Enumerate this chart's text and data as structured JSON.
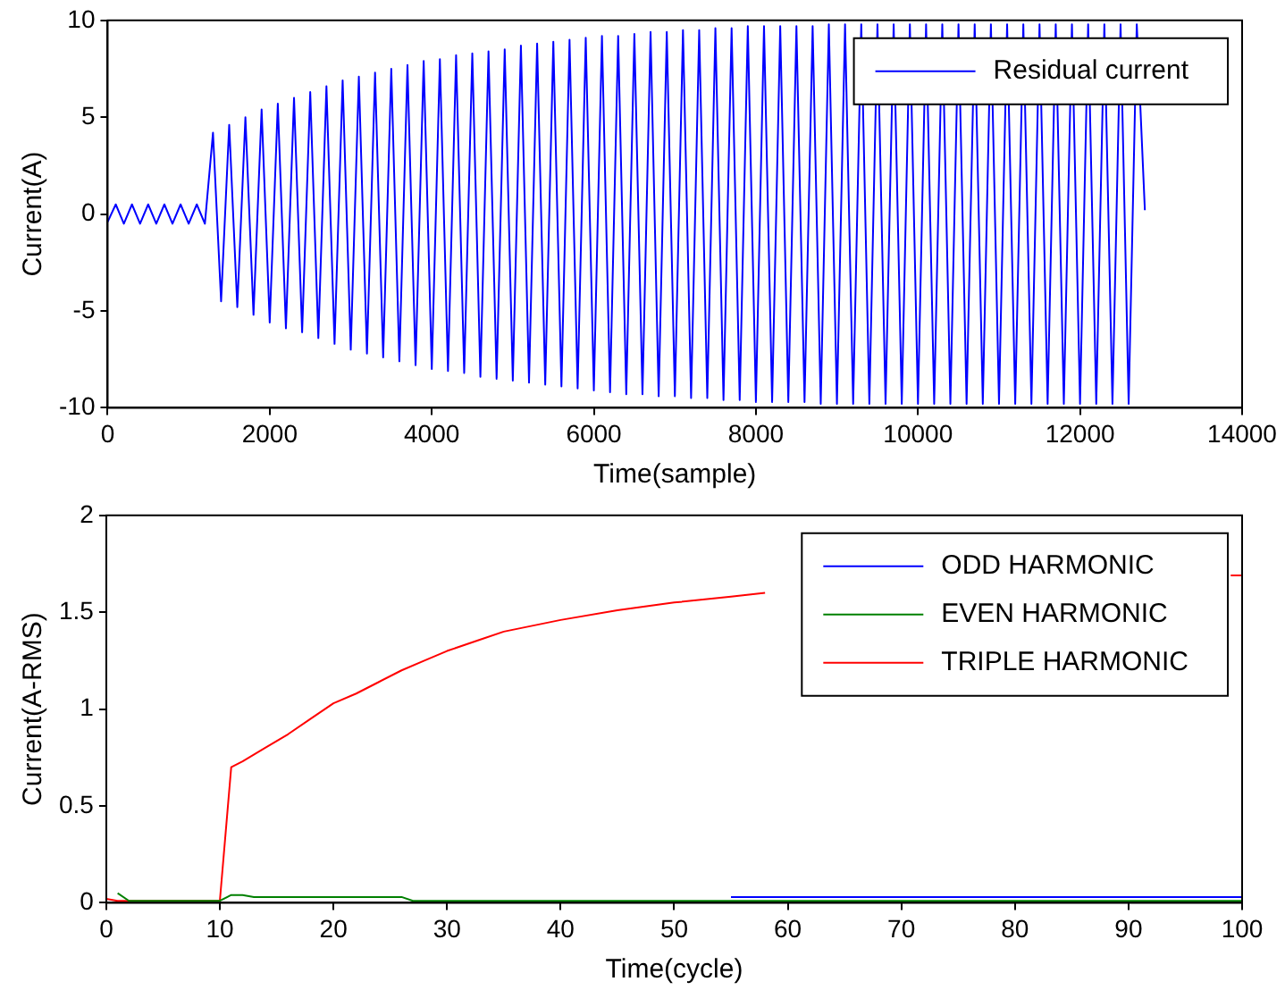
{
  "chart_data": [
    {
      "type": "line",
      "xlabel": "Time(sample)",
      "ylabel": "Current(A)",
      "legend": "top right",
      "xlim": [
        0,
        14000
      ],
      "xticks": [
        0,
        2000,
        4000,
        6000,
        8000,
        10000,
        12000,
        14000
      ],
      "ylim": [
        -10,
        10
      ],
      "yticks": [
        -10,
        -5,
        0,
        5,
        10
      ],
      "series": [
        {
          "name": "Residual current",
          "color": "#0000ff",
          "x": [
            0,
            100,
            200,
            300,
            400,
            500,
            600,
            700,
            800,
            900,
            1000,
            1100,
            1200,
            1300,
            1400,
            1500,
            1600,
            1700,
            1800,
            1900,
            2000,
            2100,
            2200,
            2300,
            2400,
            2500,
            2600,
            2700,
            2800,
            2900,
            3000,
            3100,
            3200,
            3300,
            3400,
            3500,
            3600,
            3700,
            3800,
            3900,
            4000,
            4100,
            4200,
            4300,
            4400,
            4500,
            4600,
            4700,
            4800,
            4900,
            5000,
            5100,
            5200,
            5300,
            5400,
            5500,
            5600,
            5700,
            5800,
            5900,
            6000,
            6100,
            6200,
            6300,
            6400,
            6500,
            6600,
            6700,
            6800,
            6900,
            7000,
            7100,
            7200,
            7300,
            7400,
            7500,
            7600,
            7700,
            7800,
            7900,
            8000,
            8100,
            8200,
            8300,
            8400,
            8500,
            8600,
            8700,
            8800,
            8900,
            9000,
            9100,
            9200,
            9300,
            9400,
            9500,
            9600,
            9700,
            9800,
            9900,
            10000,
            10100,
            10200,
            10300,
            10400,
            10500,
            10600,
            10700,
            10800,
            10900,
            11000,
            11100,
            11200,
            11300,
            11400,
            11500,
            11600,
            11700,
            11800,
            11900,
            12000,
            12100,
            12200,
            12300,
            12400,
            12500,
            12600,
            12700,
            12800
          ],
          "values": [
            -0.4,
            0.5,
            -0.5,
            0.5,
            -0.5,
            0.5,
            -0.5,
            0.5,
            -0.5,
            0.5,
            -0.5,
            0.5,
            -0.5,
            4.2,
            -4.5,
            4.6,
            -4.8,
            5.0,
            -5.2,
            5.4,
            -5.6,
            5.7,
            -5.9,
            6.0,
            -6.1,
            6.3,
            -6.4,
            6.6,
            -6.7,
            6.9,
            -7.0,
            7.1,
            -7.2,
            7.3,
            -7.4,
            7.5,
            -7.6,
            7.7,
            -7.8,
            7.9,
            -8.0,
            8.0,
            -8.1,
            8.2,
            -8.2,
            8.3,
            -8.4,
            8.4,
            -8.5,
            8.5,
            -8.6,
            8.7,
            -8.7,
            8.8,
            -8.8,
            8.9,
            -8.9,
            9.0,
            -9.0,
            9.1,
            -9.1,
            9.2,
            -9.2,
            9.2,
            -9.3,
            9.3,
            -9.3,
            9.4,
            -9.4,
            9.4,
            -9.4,
            9.5,
            -9.5,
            9.5,
            -9.5,
            9.6,
            -9.6,
            9.6,
            -9.6,
            9.7,
            -9.7,
            9.7,
            -9.7,
            9.7,
            -9.7,
            9.7,
            -9.7,
            9.7,
            -9.8,
            9.8,
            -9.8,
            9.8,
            -9.8,
            9.8,
            -9.8,
            9.8,
            -9.8,
            9.8,
            -9.8,
            9.8,
            -9.8,
            9.8,
            -9.8,
            9.8,
            -9.8,
            9.8,
            -9.8,
            9.8,
            -9.8,
            9.8,
            -9.8,
            9.8,
            -9.8,
            9.8,
            -9.8,
            9.8,
            -9.8,
            9.8,
            -9.8,
            9.8,
            -9.8,
            9.8,
            -9.8,
            9.8,
            -9.8,
            9.8,
            -9.8,
            9.8,
            0.2
          ]
        }
      ]
    },
    {
      "type": "line",
      "xlabel": "Time(cycle)",
      "ylabel": "Current(A-RMS)",
      "legend": "top right",
      "xlim": [
        0,
        100
      ],
      "xticks": [
        0,
        10,
        20,
        30,
        40,
        50,
        60,
        70,
        80,
        90,
        100
      ],
      "ylim": [
        0,
        2
      ],
      "yticks": [
        0,
        0.5,
        1,
        1.5,
        2
      ],
      "series": [
        {
          "name": "ODD HARMONIC",
          "color": "#0000ff",
          "x": [
            55,
            100
          ],
          "values": [
            0.03,
            0.03
          ]
        },
        {
          "name": "EVEN HARMONIC",
          "color": "#008000",
          "x": [
            1,
            2,
            10,
            11,
            12,
            13,
            26,
            27,
            100
          ],
          "values": [
            0.05,
            0.01,
            0.01,
            0.04,
            0.04,
            0.03,
            0.03,
            0.01,
            0.01
          ]
        },
        {
          "name": "TRIPLE HARMONIC",
          "color": "#ff0000",
          "x": [
            0,
            1,
            10,
            11,
            12,
            14,
            16,
            18,
            20,
            22,
            24,
            26,
            28,
            30,
            33,
            35,
            40,
            45,
            50,
            55,
            58,
            60,
            99,
            100
          ],
          "values": [
            0.02,
            0.01,
            0.01,
            0.7,
            0.73,
            0.8,
            0.87,
            0.95,
            1.03,
            1.08,
            1.14,
            1.2,
            1.25,
            1.3,
            1.36,
            1.4,
            1.46,
            1.51,
            1.55,
            1.58,
            1.6,
            null,
            1.69,
            1.69
          ]
        }
      ]
    }
  ]
}
